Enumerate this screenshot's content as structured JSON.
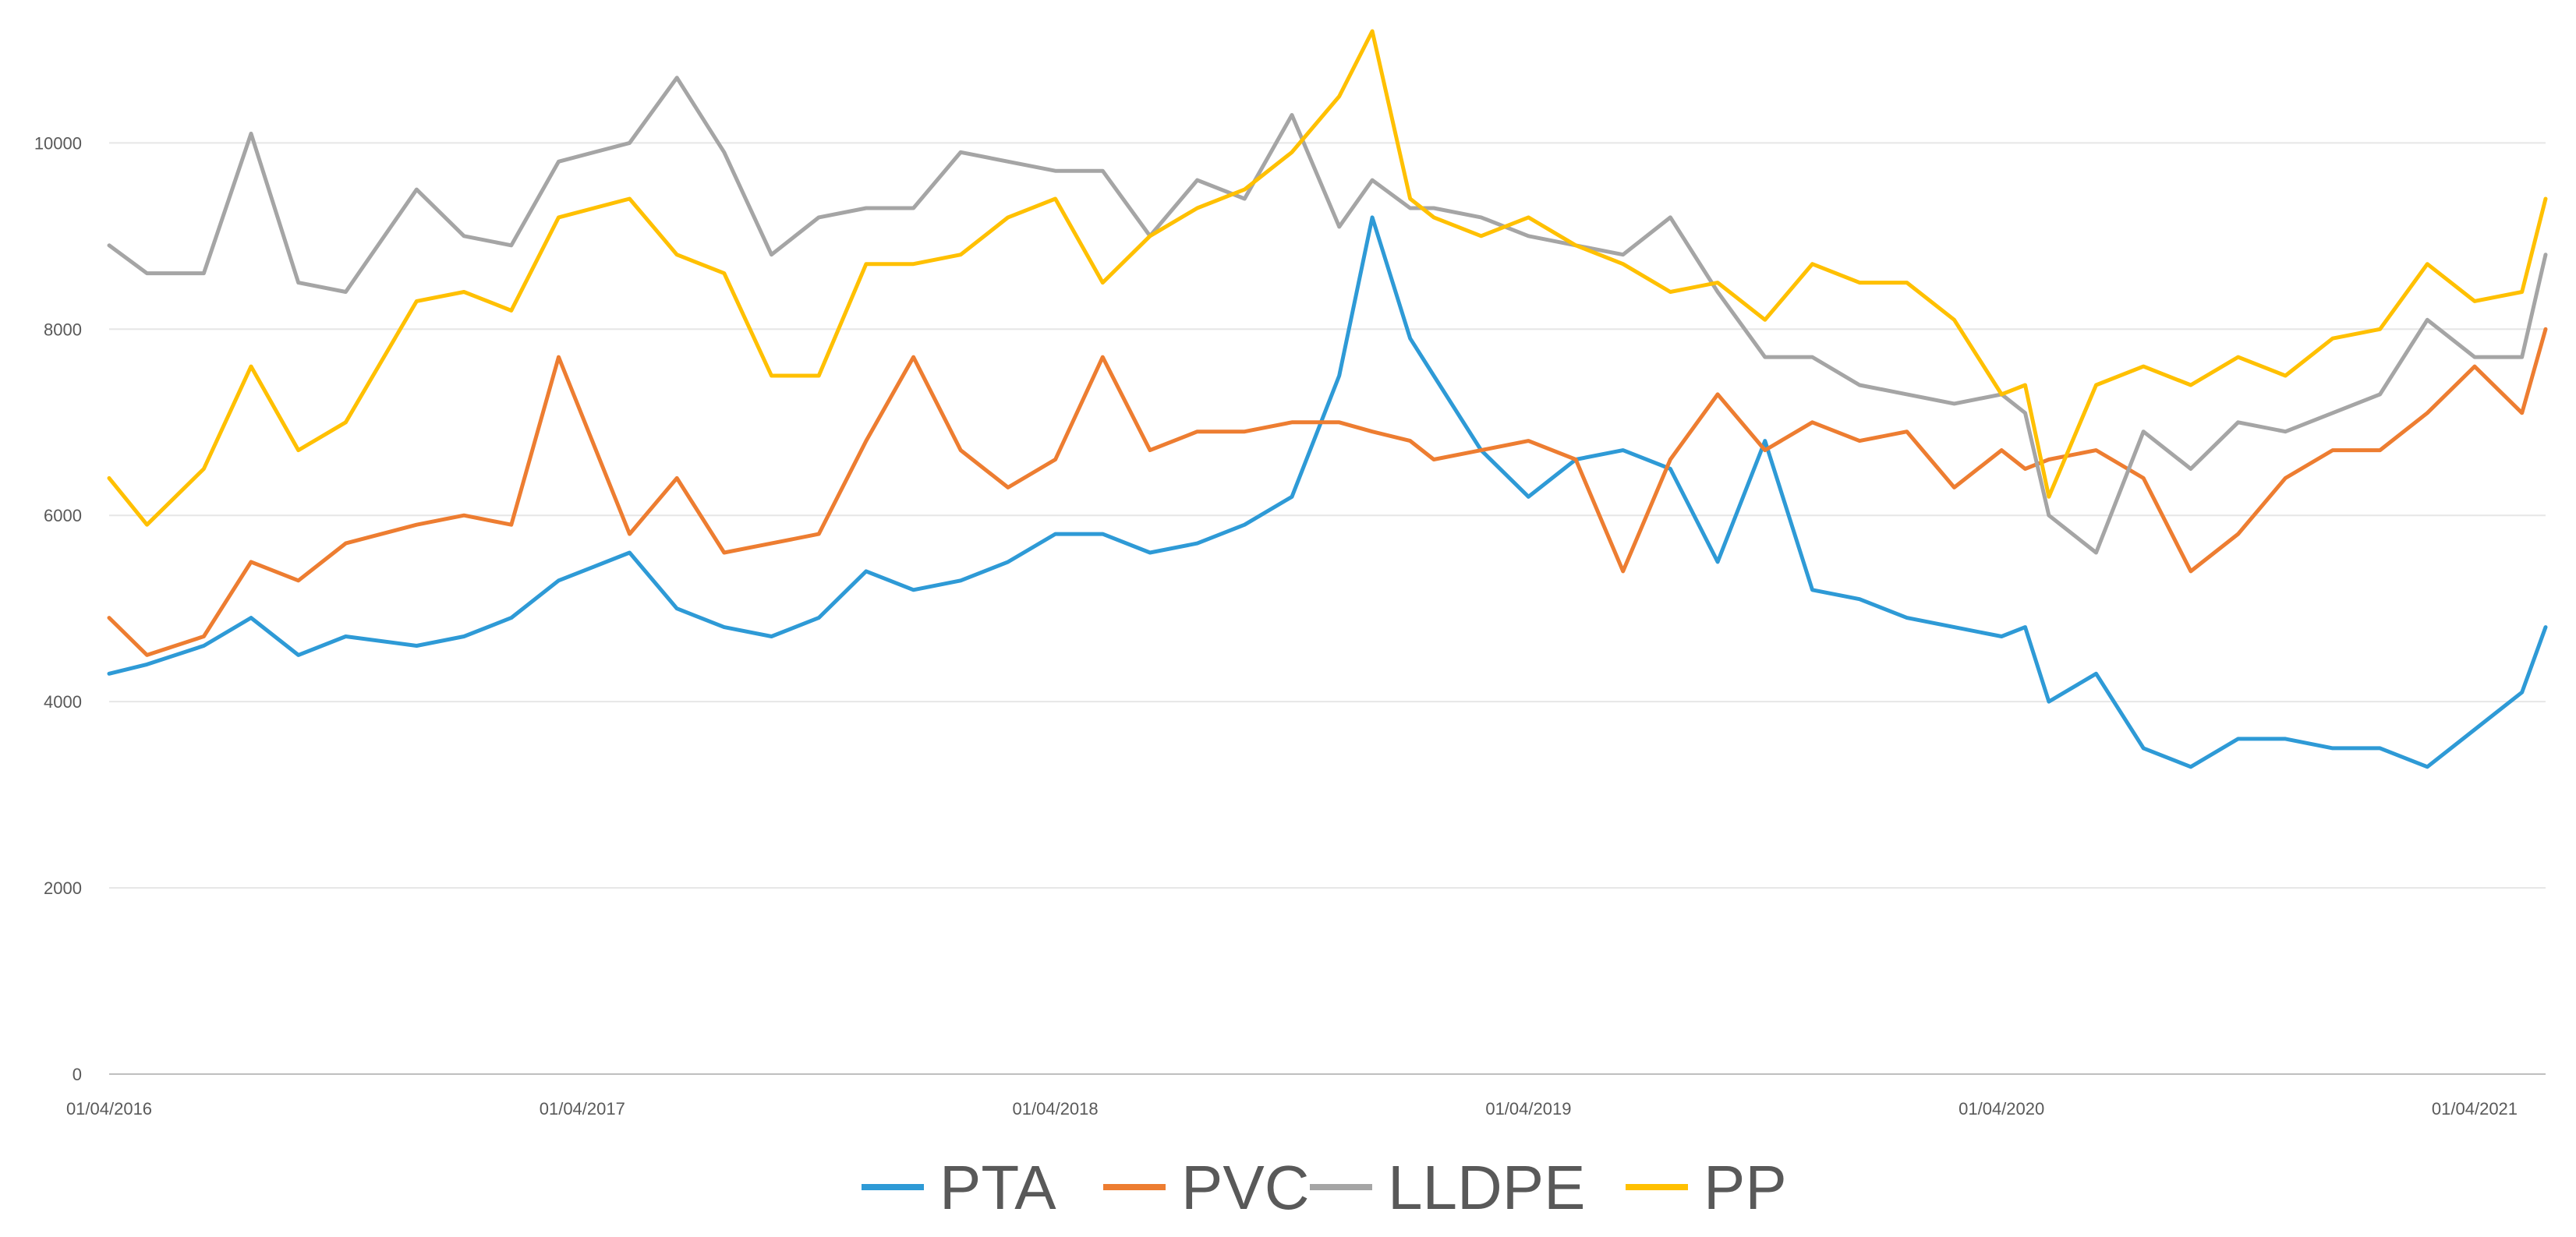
{
  "chart_data": {
    "type": "line",
    "title": "",
    "xlabel": "",
    "ylabel": "",
    "ylim": [
      0,
      11200
    ],
    "yticks": [
      0,
      2000,
      4000,
      6000,
      8000,
      10000
    ],
    "ytick_labels": [
      "0",
      "2000",
      "4000",
      "6000",
      "8000",
      "10000"
    ],
    "xlim": [
      2016.25,
      2021.4
    ],
    "xticks": [
      2016.25,
      2017.25,
      2018.25,
      2019.25,
      2020.25,
      2021.25
    ],
    "xtick_labels": [
      "01/04/2016",
      "01/04/2017",
      "01/04/2018",
      "01/04/2019",
      "01/04/2020",
      "01/04/2021"
    ],
    "grid": true,
    "legend_position": "bottom-center",
    "series": [
      {
        "name": "PTA",
        "color": "#2E9AD6",
        "x": [
          2016.25,
          2016.33,
          2016.45,
          2016.55,
          2016.65,
          2016.75,
          2016.9,
          2017.0,
          2017.1,
          2017.2,
          2017.35,
          2017.45,
          2017.55,
          2017.65,
          2017.75,
          2017.85,
          2017.95,
          2018.05,
          2018.15,
          2018.25,
          2018.35,
          2018.45,
          2018.55,
          2018.65,
          2018.75,
          2018.85,
          2018.92,
          2019.0,
          2019.05,
          2019.15,
          2019.25,
          2019.35,
          2019.45,
          2019.55,
          2019.65,
          2019.75,
          2019.85,
          2019.95,
          2020.05,
          2020.15,
          2020.25,
          2020.3,
          2020.35,
          2020.45,
          2020.55,
          2020.65,
          2020.75,
          2020.85,
          2020.95,
          2021.05,
          2021.15,
          2021.25,
          2021.35,
          2021.4
        ],
        "values": [
          4300,
          4400,
          4600,
          4900,
          4500,
          4700,
          4600,
          4700,
          4900,
          5300,
          5600,
          5000,
          4800,
          4700,
          4900,
          5400,
          5200,
          5300,
          5500,
          5800,
          5800,
          5600,
          5700,
          5900,
          6200,
          7500,
          9200,
          7900,
          7500,
          6700,
          6200,
          6600,
          6700,
          6500,
          5500,
          6800,
          5200,
          5100,
          4900,
          4800,
          4700,
          4800,
          4000,
          4300,
          3500,
          3300,
          3600,
          3600,
          3500,
          3500,
          3300,
          3700,
          4100,
          4800
        ]
      },
      {
        "name": "PVC",
        "color": "#ED7D31",
        "x": [
          2016.25,
          2016.33,
          2016.45,
          2016.55,
          2016.65,
          2016.75,
          2016.9,
          2017.0,
          2017.1,
          2017.2,
          2017.35,
          2017.45,
          2017.55,
          2017.65,
          2017.75,
          2017.85,
          2017.95,
          2018.05,
          2018.15,
          2018.25,
          2018.35,
          2018.45,
          2018.55,
          2018.65,
          2018.75,
          2018.85,
          2018.92,
          2019.0,
          2019.05,
          2019.15,
          2019.25,
          2019.35,
          2019.45,
          2019.55,
          2019.65,
          2019.75,
          2019.85,
          2019.95,
          2020.05,
          2020.15,
          2020.25,
          2020.3,
          2020.35,
          2020.45,
          2020.55,
          2020.65,
          2020.75,
          2020.85,
          2020.95,
          2021.05,
          2021.15,
          2021.25,
          2021.35,
          2021.4
        ],
        "values": [
          4900,
          4500,
          4700,
          5500,
          5300,
          5700,
          5900,
          6000,
          5900,
          7700,
          5800,
          6400,
          5600,
          5700,
          5800,
          6800,
          7700,
          6700,
          6300,
          6600,
          7700,
          6700,
          6900,
          6900,
          7000,
          7000,
          6900,
          6800,
          6600,
          6700,
          6800,
          6600,
          5400,
          6600,
          7300,
          6700,
          7000,
          6800,
          6900,
          6300,
          6700,
          6500,
          6600,
          6700,
          6400,
          5400,
          5800,
          6400,
          6700,
          6700,
          7100,
          7600,
          7100,
          8000
        ]
      },
      {
        "name": "LLDPE",
        "color": "#A5A5A5",
        "x": [
          2016.25,
          2016.33,
          2016.45,
          2016.55,
          2016.65,
          2016.75,
          2016.9,
          2017.0,
          2017.1,
          2017.2,
          2017.35,
          2017.45,
          2017.55,
          2017.65,
          2017.75,
          2017.85,
          2017.95,
          2018.05,
          2018.15,
          2018.25,
          2018.35,
          2018.45,
          2018.55,
          2018.65,
          2018.75,
          2018.85,
          2018.92,
          2019.0,
          2019.05,
          2019.15,
          2019.25,
          2019.35,
          2019.45,
          2019.55,
          2019.65,
          2019.75,
          2019.85,
          2019.95,
          2020.05,
          2020.15,
          2020.25,
          2020.3,
          2020.35,
          2020.45,
          2020.55,
          2020.65,
          2020.75,
          2020.85,
          2020.95,
          2021.05,
          2021.15,
          2021.25,
          2021.35,
          2021.4
        ],
        "values": [
          8900,
          8600,
          8600,
          10100,
          8500,
          8400,
          9500,
          9000,
          8900,
          9800,
          10000,
          10700,
          9900,
          8800,
          9200,
          9300,
          9300,
          9900,
          9800,
          9700,
          9700,
          9000,
          9600,
          9400,
          10300,
          9100,
          9600,
          9300,
          9300,
          9200,
          9000,
          8900,
          8800,
          9200,
          8400,
          7700,
          7700,
          7400,
          7300,
          7200,
          7300,
          7100,
          6000,
          5600,
          6900,
          6500,
          7000,
          6900,
          7100,
          7300,
          8100,
          7700,
          7700,
          8800
        ]
      },
      {
        "name": "PP",
        "color": "#FFC000",
        "x": [
          2016.25,
          2016.33,
          2016.45,
          2016.55,
          2016.65,
          2016.75,
          2016.9,
          2017.0,
          2017.1,
          2017.2,
          2017.35,
          2017.45,
          2017.55,
          2017.65,
          2017.75,
          2017.85,
          2017.95,
          2018.05,
          2018.15,
          2018.25,
          2018.35,
          2018.45,
          2018.55,
          2018.65,
          2018.75,
          2018.85,
          2018.92,
          2019.0,
          2019.05,
          2019.15,
          2019.25,
          2019.35,
          2019.45,
          2019.55,
          2019.65,
          2019.75,
          2019.85,
          2019.95,
          2020.05,
          2020.15,
          2020.25,
          2020.3,
          2020.35,
          2020.45,
          2020.55,
          2020.65,
          2020.75,
          2020.85,
          2020.95,
          2021.05,
          2021.15,
          2021.25,
          2021.35,
          2021.4
        ],
        "values": [
          6400,
          5900,
          6500,
          7600,
          6700,
          7000,
          8300,
          8400,
          8200,
          9200,
          9400,
          8800,
          8600,
          7500,
          7500,
          8700,
          8700,
          8800,
          9200,
          9400,
          8500,
          9000,
          9300,
          9500,
          9900,
          10500,
          11200,
          9400,
          9200,
          9000,
          9200,
          8900,
          8700,
          8400,
          8500,
          8100,
          8700,
          8500,
          8500,
          8100,
          7300,
          7400,
          6200,
          7400,
          7600,
          7400,
          7700,
          7500,
          7900,
          8000,
          8700,
          8300,
          8400,
          9400
        ]
      }
    ]
  }
}
